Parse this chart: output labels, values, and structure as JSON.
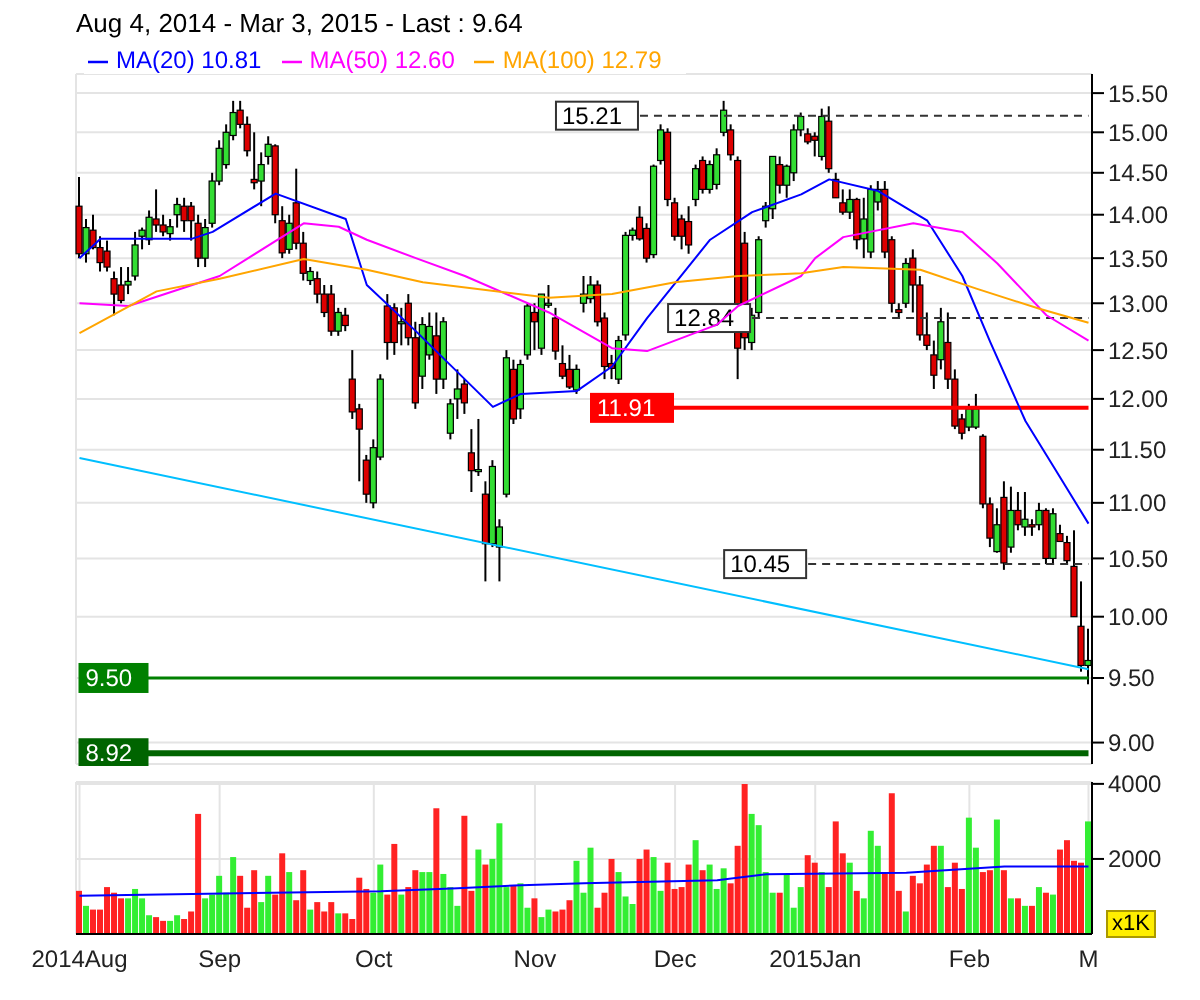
{
  "chart_data": [
    {
      "type": "candlestick",
      "title": "Aug 4, 2014 - Mar 3, 2015 - Last : 9.64",
      "categories": [
        null,
        null,
        null,
        null,
        null,
        null,
        null,
        null,
        null,
        null,
        null,
        null,
        null,
        null,
        null,
        null,
        null,
        null,
        null,
        null,
        null,
        null,
        null,
        null,
        null,
        null,
        null,
        null,
        null,
        null,
        null,
        null,
        null,
        null,
        null,
        null,
        null,
        null,
        null,
        null,
        null,
        null,
        null,
        null,
        null,
        null,
        null,
        null,
        null,
        null,
        null,
        null,
        null,
        null,
        null,
        null,
        null,
        null,
        null,
        null,
        null,
        null,
        null,
        null,
        null,
        null,
        null,
        null,
        null,
        null,
        null,
        null,
        null,
        null,
        null,
        null,
        null,
        null,
        null,
        null,
        null,
        null,
        null,
        null,
        null,
        null,
        null,
        null,
        null,
        null,
        null,
        null,
        null,
        null,
        null,
        null,
        null,
        null,
        null,
        null,
        null,
        null,
        null,
        null,
        null,
        null,
        null,
        null,
        null,
        null,
        null,
        null,
        null,
        null,
        null,
        null,
        null,
        null,
        null,
        null,
        null,
        null,
        null,
        null,
        null,
        null,
        null,
        null,
        null,
        null,
        null,
        null,
        null,
        null,
        null,
        null,
        null,
        null,
        null,
        null,
        null,
        null,
        null,
        null,
        null
      ],
      "ohlc": [
        [
          14.1,
          14.45,
          13.5,
          13.55
        ],
        [
          13.55,
          13.95,
          13.45,
          13.85
        ],
        [
          13.82,
          14.0,
          13.6,
          13.62
        ],
        [
          13.62,
          13.75,
          13.35,
          13.45
        ],
        [
          13.58,
          13.7,
          13.35,
          13.4
        ],
        [
          13.27,
          13.35,
          12.87,
          13.1
        ],
        [
          13.2,
          13.4,
          13.0,
          13.03
        ],
        [
          13.2,
          13.4,
          13.1,
          13.24
        ],
        [
          13.3,
          13.8,
          13.25,
          13.65
        ],
        [
          13.75,
          13.85,
          13.6,
          13.82
        ],
        [
          13.71,
          14.05,
          13.65,
          13.97
        ],
        [
          13.95,
          14.3,
          13.8,
          13.88
        ],
        [
          13.88,
          14.0,
          13.75,
          13.8
        ],
        [
          13.78,
          13.95,
          13.7,
          13.86
        ],
        [
          14.0,
          14.2,
          13.85,
          14.12
        ],
        [
          14.1,
          14.2,
          13.8,
          13.93
        ],
        [
          14.1,
          14.15,
          13.7,
          13.93
        ],
        [
          13.9,
          14.0,
          13.4,
          13.5
        ],
        [
          13.5,
          13.95,
          13.4,
          13.85
        ],
        [
          13.9,
          14.5,
          13.85,
          14.4
        ],
        [
          14.4,
          14.9,
          14.35,
          14.8
        ],
        [
          14.6,
          15.1,
          14.55,
          15.0
        ],
        [
          14.96,
          15.4,
          14.9,
          15.25
        ],
        [
          15.28,
          15.4,
          15.05,
          15.1
        ],
        [
          15.1,
          15.2,
          14.7,
          14.77
        ],
        [
          14.42,
          15.0,
          14.3,
          14.38
        ],
        [
          14.4,
          14.75,
          14.1,
          14.6
        ],
        [
          14.7,
          14.95,
          14.6,
          14.85
        ],
        [
          14.83,
          14.85,
          13.9,
          14.0
        ],
        [
          13.93,
          14.1,
          13.5,
          13.56
        ],
        [
          13.6,
          14.0,
          13.55,
          13.9
        ],
        [
          14.14,
          14.55,
          13.6,
          13.67
        ],
        [
          13.67,
          13.8,
          13.25,
          13.33
        ],
        [
          13.25,
          13.4,
          13.2,
          13.35
        ],
        [
          13.27,
          13.35,
          13.0,
          13.1
        ],
        [
          13.1,
          13.2,
          12.85,
          12.9
        ],
        [
          13.1,
          13.2,
          12.65,
          12.7
        ],
        [
          12.7,
          12.95,
          12.65,
          12.9
        ],
        [
          12.87,
          12.95,
          12.7,
          12.76
        ],
        [
          12.2,
          12.5,
          11.8,
          11.87
        ],
        [
          11.9,
          11.95,
          11.2,
          11.7
        ],
        [
          11.4,
          11.45,
          11.0,
          11.08
        ],
        [
          11.0,
          11.6,
          10.95,
          11.52
        ],
        [
          11.43,
          12.25,
          11.4,
          12.2
        ],
        [
          12.97,
          13.1,
          12.4,
          12.58
        ],
        [
          12.95,
          13.0,
          12.45,
          12.58
        ],
        [
          12.78,
          12.95,
          12.55,
          12.8
        ],
        [
          13.0,
          13.1,
          12.55,
          12.63
        ],
        [
          12.63,
          12.8,
          11.9,
          11.96
        ],
        [
          12.23,
          12.85,
          12.1,
          12.77
        ],
        [
          12.45,
          12.9,
          12.4,
          12.75
        ],
        [
          12.65,
          12.9,
          12.05,
          12.2
        ],
        [
          12.2,
          12.85,
          12.1,
          12.8
        ],
        [
          11.66,
          12.0,
          11.6,
          11.95
        ],
        [
          12.0,
          12.3,
          11.8,
          12.1
        ],
        [
          12.15,
          12.2,
          11.85,
          11.96
        ],
        [
          11.47,
          11.7,
          11.1,
          11.3
        ],
        [
          11.3,
          11.8,
          11.25,
          11.31
        ],
        [
          11.08,
          11.2,
          10.3,
          10.63
        ],
        [
          10.63,
          11.4,
          10.6,
          11.34
        ],
        [
          10.6,
          10.85,
          10.3,
          10.78
        ],
        [
          11.08,
          12.5,
          11.05,
          12.42
        ],
        [
          12.3,
          12.4,
          11.75,
          11.8
        ],
        [
          11.9,
          12.4,
          11.8,
          12.35
        ],
        [
          12.45,
          13.0,
          12.4,
          12.97
        ],
        [
          12.9,
          13.0,
          12.5,
          12.8
        ],
        [
          12.52,
          13.1,
          12.45,
          13.1
        ],
        [
          12.98,
          13.2,
          12.95,
          13.0
        ],
        [
          12.84,
          12.95,
          12.4,
          12.49
        ],
        [
          12.36,
          12.55,
          12.2,
          12.23
        ],
        [
          12.3,
          12.45,
          12.1,
          12.12
        ],
        [
          12.09,
          12.35,
          12.05,
          12.3
        ],
        [
          13.0,
          13.3,
          12.9,
          13.1
        ],
        [
          13.05,
          13.3,
          13.0,
          13.2
        ],
        [
          13.2,
          13.25,
          12.75,
          12.8
        ],
        [
          12.84,
          12.9,
          12.2,
          12.33
        ],
        [
          12.36,
          12.45,
          12.2,
          12.31
        ],
        [
          12.2,
          12.65,
          12.15,
          12.6
        ],
        [
          12.66,
          13.8,
          12.6,
          13.76
        ],
        [
          13.76,
          13.85,
          13.7,
          13.82
        ],
        [
          13.97,
          14.1,
          13.7,
          13.72
        ],
        [
          13.84,
          13.9,
          13.45,
          13.5
        ],
        [
          13.54,
          14.6,
          13.5,
          14.58
        ],
        [
          14.65,
          15.1,
          14.6,
          15.03
        ],
        [
          15.0,
          15.05,
          14.1,
          14.18
        ],
        [
          14.14,
          14.2,
          13.7,
          13.75
        ],
        [
          13.95,
          14.0,
          13.6,
          13.75
        ],
        [
          13.92,
          14.1,
          13.55,
          13.65
        ],
        [
          14.18,
          14.6,
          14.1,
          14.55
        ],
        [
          14.65,
          14.7,
          14.25,
          14.3
        ],
        [
          14.3,
          14.65,
          14.25,
          14.6
        ],
        [
          14.36,
          14.8,
          14.3,
          14.72
        ],
        [
          15.0,
          15.4,
          14.95,
          15.28
        ],
        [
          15.03,
          15.1,
          14.65,
          14.72
        ],
        [
          14.65,
          14.7,
          12.2,
          12.52
        ],
        [
          13.67,
          13.8,
          12.5,
          12.63
        ],
        [
          12.58,
          12.95,
          12.5,
          12.87
        ],
        [
          12.9,
          13.75,
          12.85,
          13.71
        ],
        [
          13.93,
          14.15,
          13.85,
          14.1
        ],
        [
          14.07,
          14.7,
          13.95,
          14.7
        ],
        [
          14.6,
          14.7,
          14.25,
          14.35
        ],
        [
          14.35,
          14.6,
          14.2,
          14.58
        ],
        [
          14.5,
          15.1,
          14.4,
          15.03
        ],
        [
          15.03,
          15.25,
          14.95,
          15.2
        ],
        [
          14.98,
          15.05,
          14.85,
          14.88
        ],
        [
          14.95,
          15.0,
          14.7,
          14.9
        ],
        [
          14.7,
          15.3,
          14.65,
          15.2
        ],
        [
          15.14,
          15.33,
          14.5,
          14.55
        ],
        [
          14.42,
          14.5,
          14.2,
          14.2
        ],
        [
          14.14,
          14.3,
          14.0,
          14.03
        ],
        [
          14.03,
          14.3,
          13.95,
          14.18
        ],
        [
          14.18,
          14.2,
          13.6,
          13.71
        ],
        [
          13.72,
          14.2,
          13.5,
          13.95
        ],
        [
          13.57,
          14.35,
          13.5,
          14.3
        ],
        [
          14.15,
          14.4,
          14.05,
          14.3
        ],
        [
          14.3,
          14.4,
          13.5,
          13.57
        ],
        [
          13.71,
          13.75,
          12.9,
          13.0
        ],
        [
          12.93,
          13.0,
          12.85,
          12.9
        ],
        [
          13.0,
          13.5,
          12.95,
          13.44
        ],
        [
          13.5,
          13.6,
          12.9,
          13.2
        ],
        [
          13.2,
          13.3,
          12.6,
          12.66
        ],
        [
          12.66,
          12.9,
          12.5,
          12.55
        ],
        [
          12.45,
          12.6,
          12.1,
          12.24
        ],
        [
          12.4,
          12.95,
          12.3,
          12.8
        ],
        [
          12.58,
          12.9,
          12.1,
          12.2
        ],
        [
          12.2,
          12.3,
          11.7,
          11.73
        ],
        [
          11.8,
          11.85,
          11.6,
          11.66
        ],
        [
          11.72,
          11.95,
          11.68,
          11.9
        ],
        [
          11.72,
          12.05,
          11.7,
          11.9
        ],
        [
          11.63,
          11.65,
          10.95,
          10.99
        ],
        [
          10.99,
          11.05,
          10.6,
          10.68
        ],
        [
          10.56,
          10.95,
          10.55,
          10.8
        ],
        [
          11.05,
          11.2,
          10.4,
          10.46
        ],
        [
          10.6,
          11.15,
          10.55,
          10.93
        ],
        [
          10.93,
          11.1,
          10.75,
          10.8
        ],
        [
          10.78,
          11.1,
          10.7,
          10.85
        ],
        [
          10.8,
          10.85,
          10.7,
          10.78
        ],
        [
          10.8,
          11.0,
          10.75,
          10.93
        ],
        [
          10.93,
          10.95,
          10.45,
          10.5
        ],
        [
          10.5,
          10.95,
          10.45,
          10.9
        ],
        [
          10.72,
          10.8,
          10.65,
          10.65
        ],
        [
          10.64,
          10.7,
          10.45,
          10.48
        ],
        [
          10.43,
          10.75,
          10.0,
          10.0
        ],
        [
          9.92,
          10.3,
          9.55,
          9.6
        ],
        [
          9.6,
          9.9,
          9.45,
          9.64
        ]
      ],
      "series": [
        {
          "type": "line",
          "name": "MA(20) 10.81",
          "color": "#0000ff",
          "values": [
            13.5,
            null,
            null,
            13.72,
            null,
            null,
            null,
            null,
            null,
            null,
            null,
            null,
            null,
            null,
            null,
            null,
            13.72,
            null,
            null,
            13.8,
            null,
            null,
            null,
            null,
            null,
            null,
            null,
            null,
            14.25,
            null,
            null,
            null,
            null,
            null,
            null,
            null,
            null,
            null,
            13.95,
            null,
            null,
            13.2,
            null,
            null,
            null,
            null,
            null,
            null,
            12.7,
            null,
            null,
            null,
            null,
            null,
            null,
            null,
            null,
            null,
            null,
            11.92,
            null,
            null,
            null,
            12.05,
            null,
            null,
            null,
            null,
            null,
            null,
            null,
            12.08,
            null,
            null,
            null,
            null,
            12.33,
            null,
            null,
            null,
            null,
            12.84,
            null,
            null,
            null,
            null,
            null,
            null,
            null,
            null,
            13.71,
            null,
            null,
            null,
            null,
            null,
            14.03,
            null,
            null,
            null,
            null,
            null,
            null,
            14.24,
            null,
            null,
            null,
            14.42,
            null,
            null,
            null,
            null,
            null,
            null,
            14.28,
            null,
            null,
            null,
            null,
            null,
            null,
            13.93,
            null,
            null,
            null,
            null,
            13.3,
            null,
            null,
            null,
            12.58,
            null,
            null,
            null,
            null,
            11.78,
            null,
            null,
            null,
            11.34,
            null,
            null,
            null,
            null,
            10.81
          ]
        },
        {
          "type": "line",
          "name": "MA(50) 12.60",
          "color": "#ff00ff",
          "values": [
            13.0,
            null,
            null,
            null,
            null,
            null,
            null,
            12.97,
            null,
            null,
            null,
            null,
            null,
            null,
            null,
            null,
            null,
            null,
            null,
            null,
            13.3,
            null,
            null,
            null,
            null,
            null,
            null,
            null,
            null,
            null,
            null,
            null,
            13.9,
            null,
            null,
            null,
            null,
            13.86,
            null,
            null,
            null,
            13.71,
            null,
            null,
            null,
            null,
            null,
            null,
            13.5,
            null,
            null,
            null,
            null,
            null,
            null,
            13.3,
            null,
            null,
            null,
            null,
            null,
            null,
            null,
            null,
            null,
            null,
            null,
            12.9,
            null,
            null,
            null,
            null,
            null,
            null,
            null,
            null,
            12.52,
            null,
            null,
            null,
            null,
            12.49,
            null,
            null,
            null,
            null,
            null,
            null,
            null,
            null,
            null,
            12.77,
            null,
            null,
            12.97,
            null,
            null,
            null,
            null,
            null,
            null,
            null,
            null,
            13.3,
            null,
            13.5,
            null,
            null,
            null,
            13.74,
            null,
            null,
            null,
            null,
            null,
            null,
            null,
            null,
            null,
            13.9,
            null,
            null,
            null,
            null,
            null,
            null,
            13.8,
            null,
            null,
            null,
            null,
            13.44,
            null,
            null,
            null,
            null,
            null,
            null,
            12.87,
            null,
            null,
            null,
            null,
            null,
            12.6
          ]
        },
        {
          "type": "line",
          "name": "MA(100) 12.79",
          "color": "#ffa500",
          "values": [
            12.68,
            null,
            null,
            null,
            null,
            null,
            null,
            null,
            null,
            null,
            null,
            13.13,
            null,
            null,
            null,
            null,
            null,
            null,
            null,
            null,
            13.27,
            null,
            null,
            null,
            null,
            null,
            null,
            null,
            null,
            null,
            null,
            null,
            13.49,
            null,
            null,
            null,
            null,
            null,
            null,
            null,
            null,
            13.37,
            null,
            null,
            null,
            null,
            null,
            null,
            null,
            13.23,
            null,
            null,
            null,
            null,
            null,
            null,
            null,
            null,
            null,
            null,
            null,
            null,
            null,
            null,
            null,
            null,
            null,
            13.06,
            null,
            null,
            null,
            null,
            null,
            null,
            null,
            null,
            13.1,
            null,
            null,
            null,
            null,
            null,
            null,
            null,
            null,
            13.23,
            null,
            null,
            null,
            null,
            null,
            null,
            null,
            null,
            13.3,
            null,
            null,
            null,
            null,
            null,
            null,
            null,
            null,
            13.33,
            null,
            null,
            null,
            null,
            null,
            13.4,
            null,
            null,
            null,
            null,
            null,
            null,
            null,
            null,
            null,
            null,
            13.37,
            null,
            null,
            null,
            null,
            null,
            null,
            null,
            13.16,
            null,
            null,
            null,
            null,
            null,
            null,
            null,
            null,
            12.94,
            null,
            null,
            null,
            null,
            null,
            null,
            12.79
          ]
        },
        {
          "type": "line",
          "color": "#00bfff",
          "values": [
            11.42,
            null,
            null,
            null,
            null,
            null,
            null,
            null,
            null,
            null,
            null,
            null,
            null,
            null,
            null,
            null,
            null,
            null,
            null,
            null,
            null,
            null,
            null,
            null,
            null,
            null,
            null,
            null,
            null,
            null,
            null,
            null,
            null,
            null,
            null,
            null,
            null,
            null,
            null,
            null,
            null,
            null,
            null,
            null,
            null,
            null,
            null,
            null,
            null,
            null,
            null,
            null,
            null,
            null,
            null,
            null,
            null,
            null,
            null,
            null,
            null,
            null,
            null,
            null,
            null,
            null,
            null,
            null,
            null,
            null,
            null,
            null,
            null,
            null,
            null,
            null,
            null,
            null,
            null,
            null,
            null,
            null,
            null,
            null,
            null,
            null,
            null,
            null,
            null,
            null,
            null,
            null,
            null,
            null,
            null,
            null,
            null,
            null,
            null,
            null,
            null,
            null,
            null,
            null,
            null,
            null,
            null,
            null,
            null,
            null,
            null,
            null,
            null,
            null,
            null,
            null,
            null,
            null,
            null,
            null,
            null,
            null,
            null,
            null,
            null,
            null,
            null,
            null,
            null,
            null,
            null,
            null,
            null,
            null,
            null,
            null,
            null,
            null,
            null,
            null,
            null,
            null,
            null,
            null,
            9.57
          ]
        }
      ],
      "ylim": [
        8.84,
        15.75
      ],
      "yticks": [
        {
          "value": 9,
          "label": "9.00"
        },
        {
          "value": 9.5,
          "label": "9.50"
        },
        {
          "value": 10,
          "label": "10.00"
        },
        {
          "value": 10.5,
          "label": "10.50"
        },
        {
          "value": 11,
          "label": "11.00"
        },
        {
          "value": 11.5,
          "label": "11.50"
        },
        {
          "value": 12,
          "label": "12.00"
        },
        {
          "value": 12.5,
          "label": "12.50"
        },
        {
          "value": 13,
          "label": "13.00"
        },
        {
          "value": 13.5,
          "label": "13.50"
        },
        {
          "value": 14,
          "label": "14.00"
        },
        {
          "value": 14.5,
          "label": "14.50"
        },
        {
          "value": 15,
          "label": "15.00"
        },
        {
          "value": 15.5,
          "label": "15.50"
        }
      ],
      "log": true,
      "grid": true,
      "legend": "top left",
      "tick_labels": "y",
      "ref_lines": [
        {
          "axis": "y",
          "value": 9.5,
          "label": "9.50",
          "color": "#008000"
        },
        {
          "axis": "y",
          "value": 8.92,
          "label": "8.92",
          "color": "#006400"
        },
        {
          "axis": "y",
          "value": 11.91,
          "label": "11.91",
          "color": "#ff0000"
        },
        {
          "axis": "y",
          "value": 15.21,
          "label": "15.21",
          "line_style": "dashed"
        },
        {
          "axis": "y",
          "value": 12.84,
          "label": "12.84",
          "line_style": "dashed"
        },
        {
          "axis": "y",
          "value": 10.45,
          "label": "10.45",
          "line_style": "dashed"
        }
      ]
    },
    {
      "type": "bar",
      "categories": [
        "2014Aug",
        null,
        null,
        null,
        null,
        null,
        null,
        null,
        null,
        null,
        null,
        null,
        null,
        null,
        null,
        null,
        null,
        null,
        null,
        null,
        "Sep",
        null,
        null,
        null,
        null,
        null,
        null,
        null,
        null,
        null,
        null,
        null,
        null,
        null,
        null,
        null,
        null,
        null,
        null,
        null,
        null,
        null,
        "Oct",
        null,
        null,
        null,
        null,
        null,
        null,
        null,
        null,
        null,
        null,
        null,
        null,
        null,
        null,
        null,
        null,
        null,
        null,
        null,
        null,
        null,
        null,
        "Nov",
        null,
        null,
        null,
        null,
        null,
        null,
        null,
        null,
        null,
        null,
        null,
        null,
        null,
        null,
        null,
        null,
        null,
        null,
        null,
        "Dec",
        null,
        null,
        null,
        null,
        null,
        null,
        null,
        null,
        null,
        null,
        null,
        null,
        null,
        null,
        null,
        null,
        null,
        null,
        null,
        "2015Jan",
        null,
        null,
        null,
        null,
        null,
        null,
        null,
        null,
        null,
        null,
        null,
        null,
        null,
        null,
        null,
        null,
        null,
        null,
        null,
        null,
        null,
        "Feb",
        null,
        null,
        null,
        null,
        null,
        null,
        null,
        null,
        null,
        null,
        null,
        null,
        null,
        null,
        null,
        null,
        "M"
      ],
      "series": [
        {
          "type": "bar",
          "values": [
            1150,
            750,
            650,
            650,
            1250,
            1100,
            950,
            950,
            1200,
            950,
            500,
            450,
            350,
            350,
            500,
            400,
            600,
            3200,
            950,
            1050,
            1550,
            1100,
            2050,
            1550,
            700,
            1700,
            850,
            1550,
            1050,
            2150,
            1650,
            900,
            1700,
            650,
            850,
            600,
            850,
            550,
            550,
            400,
            1500,
            1200,
            1100,
            1850,
            1050,
            2400,
            1050,
            1250,
            1700,
            1650,
            1650,
            3350,
            1600,
            1250,
            750,
            3150,
            1150,
            2250,
            1850,
            2000,
            2950,
            1250,
            1300,
            1350,
            700,
            950,
            450,
            650,
            600,
            650,
            900,
            1950,
            1100,
            2300,
            700,
            1100,
            2000,
            1650,
            1000,
            800,
            2000,
            2250,
            2050,
            1150,
            1900,
            1200,
            1250,
            1850,
            2500,
            1700,
            1850,
            1200,
            1750,
            1350,
            2350,
            4000,
            3200,
            2900,
            1650,
            1100,
            1100,
            1600,
            700,
            1250,
            2100,
            1900,
            1650,
            1250,
            3000,
            2150,
            1900,
            1150,
            950,
            2750,
            2350,
            1600,
            3750,
            1150,
            600,
            1550,
            1350,
            1850,
            2350,
            2350,
            1250,
            1900,
            1200,
            3100,
            2300,
            1650,
            1700,
            3050,
            1700,
            950,
            950,
            750,
            750,
            1250,
            1100,
            1050,
            2250,
            2500,
            1950,
            1900,
            3000
          ],
          "colors": [
            "#ff2222",
            "#33ee33",
            "#ff2222",
            "#ff2222",
            "#ff2222",
            "#ff2222",
            "#ff2222",
            "#33ee33",
            "#33ee33",
            "#33ee33",
            "#33ee33",
            "#ff2222",
            "#ff2222",
            "#33ee33",
            "#33ee33",
            "#ff2222",
            "#ff2222",
            "#ff2222",
            "#33ee33",
            "#33ee33",
            "#33ee33",
            "#33ee33",
            "#33ee33",
            "#ff2222",
            "#ff2222",
            "#ff2222",
            "#33ee33",
            "#33ee33",
            "#ff2222",
            "#ff2222",
            "#33ee33",
            "#ff2222",
            "#ff2222",
            "#33ee33",
            "#ff2222",
            "#ff2222",
            "#ff2222",
            "#33ee33",
            "#ff2222",
            "#ff2222",
            "#ff2222",
            "#ff2222",
            "#33ee33",
            "#33ee33",
            "#ff2222",
            "#ff2222",
            "#33ee33",
            "#ff2222",
            "#ff2222",
            "#33ee33",
            "#33ee33",
            "#ff2222",
            "#33ee33",
            "#33ee33",
            "#33ee33",
            "#ff2222",
            "#ff2222",
            "#33ee33",
            "#ff2222",
            "#33ee33",
            "#33ee33",
            "#33ee33",
            "#ff2222",
            "#33ee33",
            "#33ee33",
            "#ff2222",
            "#33ee33",
            "#33ee33",
            "#ff2222",
            "#ff2222",
            "#ff2222",
            "#33ee33",
            "#33ee33",
            "#33ee33",
            "#ff2222",
            "#ff2222",
            "#ff2222",
            "#33ee33",
            "#33ee33",
            "#33ee33",
            "#ff2222",
            "#ff2222",
            "#33ee33",
            "#33ee33",
            "#ff2222",
            "#ff2222",
            "#ff2222",
            "#ff2222",
            "#33ee33",
            "#ff2222",
            "#33ee33",
            "#33ee33",
            "#33ee33",
            "#ff2222",
            "#ff2222",
            "#ff2222",
            "#33ee33",
            "#33ee33",
            "#33ee33",
            "#33ee33",
            "#ff2222",
            "#33ee33",
            "#33ee33",
            "#33ee33",
            "#ff2222",
            "#ff2222",
            "#33ee33",
            "#ff2222",
            "#ff2222",
            "#ff2222",
            "#33ee33",
            "#ff2222",
            "#33ee33",
            "#33ee33",
            "#33ee33",
            "#ff2222",
            "#ff2222",
            "#ff2222",
            "#33ee33",
            "#ff2222",
            "#ff2222",
            "#ff2222",
            "#ff2222",
            "#33ee33",
            "#ff2222",
            "#ff2222",
            "#ff2222",
            "#33ee33",
            "#33ee33",
            "#ff2222",
            "#ff2222",
            "#33ee33",
            "#ff2222",
            "#33ee33",
            "#ff2222",
            "#33ee33",
            "#ff2222",
            "#33ee33",
            "#ff2222",
            "#33ee33",
            "#ff2222",
            "#ff2222",
            "#ff2222",
            "#ff2222",
            "#33ee33"
          ]
        },
        {
          "type": "line",
          "color": "#0000ff",
          "values": [
            1020,
            null,
            null,
            null,
            null,
            null,
            null,
            null,
            null,
            null,
            null,
            null,
            null,
            null,
            null,
            null,
            null,
            null,
            null,
            null,
            null,
            null,
            null,
            null,
            null,
            null,
            null,
            null,
            null,
            null,
            null,
            null,
            null,
            null,
            null,
            null,
            null,
            null,
            null,
            null,
            null,
            null,
            null,
            1140,
            null,
            null,
            null,
            null,
            null,
            null,
            null,
            null,
            null,
            null,
            1220,
            null,
            null,
            null,
            null,
            null,
            null,
            null,
            1290,
            null,
            null,
            null,
            null,
            null,
            null,
            null,
            null,
            null,
            1350,
            null,
            null,
            null,
            null,
            null,
            null,
            null,
            null,
            null,
            null,
            null,
            null,
            null,
            null,
            null,
            null,
            null,
            null,
            1430,
            null,
            null,
            null,
            null,
            null,
            null,
            1590,
            null,
            null,
            null,
            null,
            null,
            null,
            null,
            null,
            null,
            null,
            null,
            null,
            null,
            null,
            null,
            null,
            null,
            null,
            null,
            1630,
            null,
            null,
            null,
            null,
            1690,
            null,
            null,
            null,
            null,
            null,
            null,
            null,
            null,
            1800,
            null,
            null,
            null,
            null,
            null,
            null,
            null,
            null,
            null,
            null,
            null,
            1800
          ]
        }
      ],
      "ylim": [
        0,
        4050
      ],
      "yticks": [
        2000,
        4000
      ],
      "grid": true,
      "annotations": [
        "x1K"
      ]
    }
  ]
}
